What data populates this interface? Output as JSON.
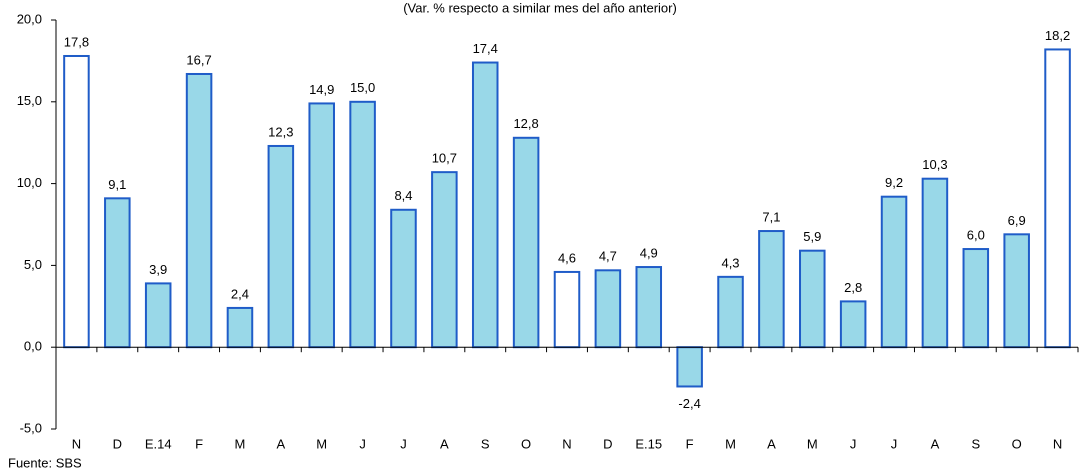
{
  "chart_data": {
    "type": "bar",
    "subtitle": "(Var. % respecto a similar mes del año anterior)",
    "footnote": "Fuente: SBS",
    "categories": [
      "N",
      "D",
      "E.14",
      "F",
      "M",
      "A",
      "M",
      "J",
      "J",
      "A",
      "S",
      "O",
      "N",
      "D",
      "E.15",
      "F",
      "M",
      "A",
      "M",
      "J",
      "J",
      "A",
      "S",
      "O",
      "N"
    ],
    "values": [
      17.8,
      9.1,
      3.9,
      16.7,
      2.4,
      12.3,
      14.9,
      15.0,
      8.4,
      10.7,
      17.4,
      12.8,
      4.6,
      4.7,
      4.9,
      -2.4,
      4.3,
      7.1,
      5.9,
      2.8,
      9.2,
      10.3,
      6.0,
      6.9,
      18.2
    ],
    "value_labels": [
      "17,8",
      "9,1",
      "3,9",
      "16,7",
      "2,4",
      "12,3",
      "14,9",
      "15,0",
      "8,4",
      "10,7",
      "17,4",
      "12,8",
      "4,6",
      "4,7",
      "4,9",
      "-2,4",
      "4,3",
      "7,1",
      "5,9",
      "2,8",
      "9,2",
      "10,3",
      "6,0",
      "6,9",
      "18,2"
    ],
    "colors": [
      "#ffffff",
      "#99d8e8",
      "#99d8e8",
      "#99d8e8",
      "#99d8e8",
      "#99d8e8",
      "#99d8e8",
      "#99d8e8",
      "#99d8e8",
      "#99d8e8",
      "#99d8e8",
      "#99d8e8",
      "#ffffff",
      "#99d8e8",
      "#99d8e8",
      "#99d8e8",
      "#99d8e8",
      "#99d8e8",
      "#99d8e8",
      "#99d8e8",
      "#99d8e8",
      "#99d8e8",
      "#99d8e8",
      "#99d8e8",
      "#ffffff"
    ],
    "edge_color": "#1f5cc8",
    "ylim": [
      -5,
      20
    ],
    "yticks": [
      {
        "value": -5,
        "label": "-5,0"
      },
      {
        "value": 0,
        "label": "0,0"
      },
      {
        "value": 5,
        "label": "5,0"
      },
      {
        "value": 10,
        "label": "10,0"
      },
      {
        "value": 15,
        "label": "15,0"
      },
      {
        "value": 20,
        "label": "20,0"
      }
    ],
    "grid": false
  }
}
